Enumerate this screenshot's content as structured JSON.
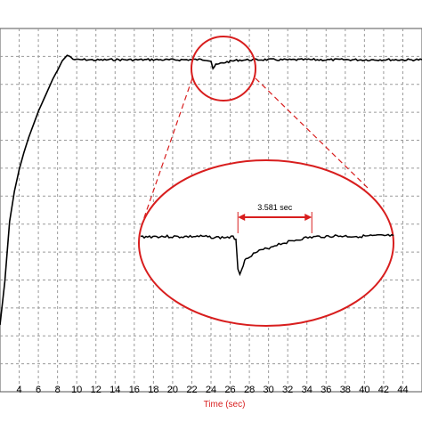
{
  "chart_data": {
    "type": "line",
    "title": "",
    "xlabel": "Time (sec)",
    "ylabel": "",
    "xlim": [
      2,
      46
    ],
    "x_ticks": [
      4,
      6,
      8,
      10,
      12,
      14,
      16,
      18,
      20,
      22,
      24,
      26,
      28,
      30,
      32,
      34,
      36,
      38,
      40,
      42,
      44
    ],
    "x_tick_labels": [
      "4",
      "6",
      "8",
      "10",
      "12",
      "14",
      "16",
      "18",
      "20",
      "22",
      "24",
      "26",
      "28",
      "30",
      "32",
      "34",
      "36",
      "38",
      "40",
      "42",
      "44"
    ],
    "grid": true,
    "grid_style": "dashed",
    "series": [
      {
        "x": [
          2.0,
          2.5,
          3.0,
          3.5,
          4.0,
          4.5,
          5.0,
          5.5,
          6.0,
          6.5,
          7.0,
          7.5,
          8.0,
          8.5,
          9.0,
          9.3,
          9.6,
          10.0,
          11,
          12,
          14,
          16,
          18,
          20,
          22,
          23.5,
          24.0,
          24.2,
          24.5,
          25.0,
          25.5,
          26.0,
          26.5,
          27,
          28,
          30,
          32,
          34,
          36,
          38,
          40,
          42,
          44,
          46
        ],
        "y": [
          0.0,
          0.2,
          0.48,
          0.62,
          0.72,
          0.8,
          0.87,
          0.93,
          0.99,
          1.04,
          1.09,
          1.14,
          1.18,
          1.225,
          1.25,
          1.245,
          1.232,
          1.229,
          1.23,
          1.228,
          1.23,
          1.229,
          1.23,
          1.229,
          1.23,
          1.23,
          1.225,
          1.19,
          1.205,
          1.212,
          1.218,
          1.222,
          1.226,
          1.228,
          1.229,
          1.23,
          1.229,
          1.23,
          1.229,
          1.23,
          1.229,
          1.23,
          1.229,
          1.23
        ]
      }
    ],
    "zoom": {
      "annotation": "3.581 sec",
      "interval": [
        26.0,
        33.6
      ],
      "x": [
        16,
        18,
        20,
        22,
        24,
        25.5,
        25.8,
        26.0,
        26.2,
        26.4,
        26.7,
        27,
        28,
        29,
        30,
        31,
        32,
        33,
        34,
        36,
        38,
        40,
        42
      ],
      "y": [
        0.0,
        0.01,
        0.0,
        0.01,
        -0.02,
        -0.01,
        -0.05,
        -0.8,
        -0.95,
        -0.8,
        -0.62,
        -0.52,
        -0.38,
        -0.3,
        -0.2,
        -0.14,
        -0.08,
        -0.03,
        0.0,
        0.02,
        0.01,
        0.02,
        0.03
      ]
    },
    "colors": {
      "line": "#000000",
      "highlight": "#d81e1e",
      "grid": "#9a9a9a"
    }
  }
}
